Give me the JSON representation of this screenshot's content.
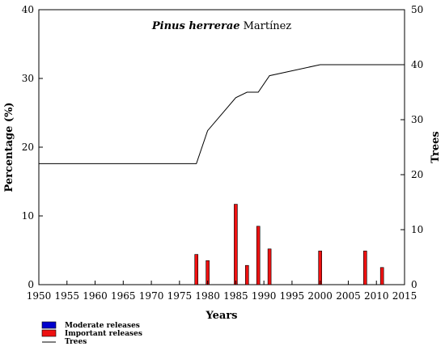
{
  "chart_data": {
    "type": "bar",
    "title": {
      "italic": "Pinus herrerae",
      "author": "Martínez"
    },
    "xlabel": "Years",
    "ylabel_left": "Percentage (%)",
    "ylabel_right": "Trees",
    "xlim": [
      1950,
      2015
    ],
    "ylim_left": [
      0,
      40
    ],
    "ylim_right": [
      0,
      50
    ],
    "x_ticks": [
      1950,
      1955,
      1960,
      1965,
      1970,
      1975,
      1980,
      1985,
      1990,
      1995,
      2000,
      2005,
      2010,
      2015
    ],
    "y_left_ticks": [
      0,
      10,
      20,
      30,
      40
    ],
    "y_right_ticks": [
      0,
      10,
      20,
      30,
      40,
      50
    ],
    "grid": false,
    "legend_placement": "bottom-left",
    "legend": [
      {
        "name": "Moderate releases",
        "kind": "box",
        "color": "#0000cc"
      },
      {
        "name": "Important releases",
        "kind": "box",
        "color": "#ee1111"
      },
      {
        "name": "Trees",
        "kind": "line",
        "color": "#000000"
      }
    ],
    "series": [
      {
        "key": "moderate",
        "axis": "left",
        "color": "#0000cc",
        "x": [],
        "values": []
      },
      {
        "key": "important",
        "axis": "left",
        "color": "#ee1111",
        "x": [
          1978,
          1980,
          1985,
          1987,
          1989,
          1991,
          2000,
          2008,
          2011
        ],
        "values": [
          4.4,
          3.5,
          11.7,
          2.8,
          8.5,
          5.2,
          4.9,
          4.9,
          2.5
        ]
      },
      {
        "key": "trees",
        "axis": "right",
        "color": "#000000",
        "x": [
          1950,
          1978,
          1980,
          1985,
          1987,
          1989,
          1991,
          2000,
          2015
        ],
        "values": [
          22,
          22,
          28,
          34,
          35,
          35,
          38,
          40,
          40
        ]
      }
    ]
  }
}
